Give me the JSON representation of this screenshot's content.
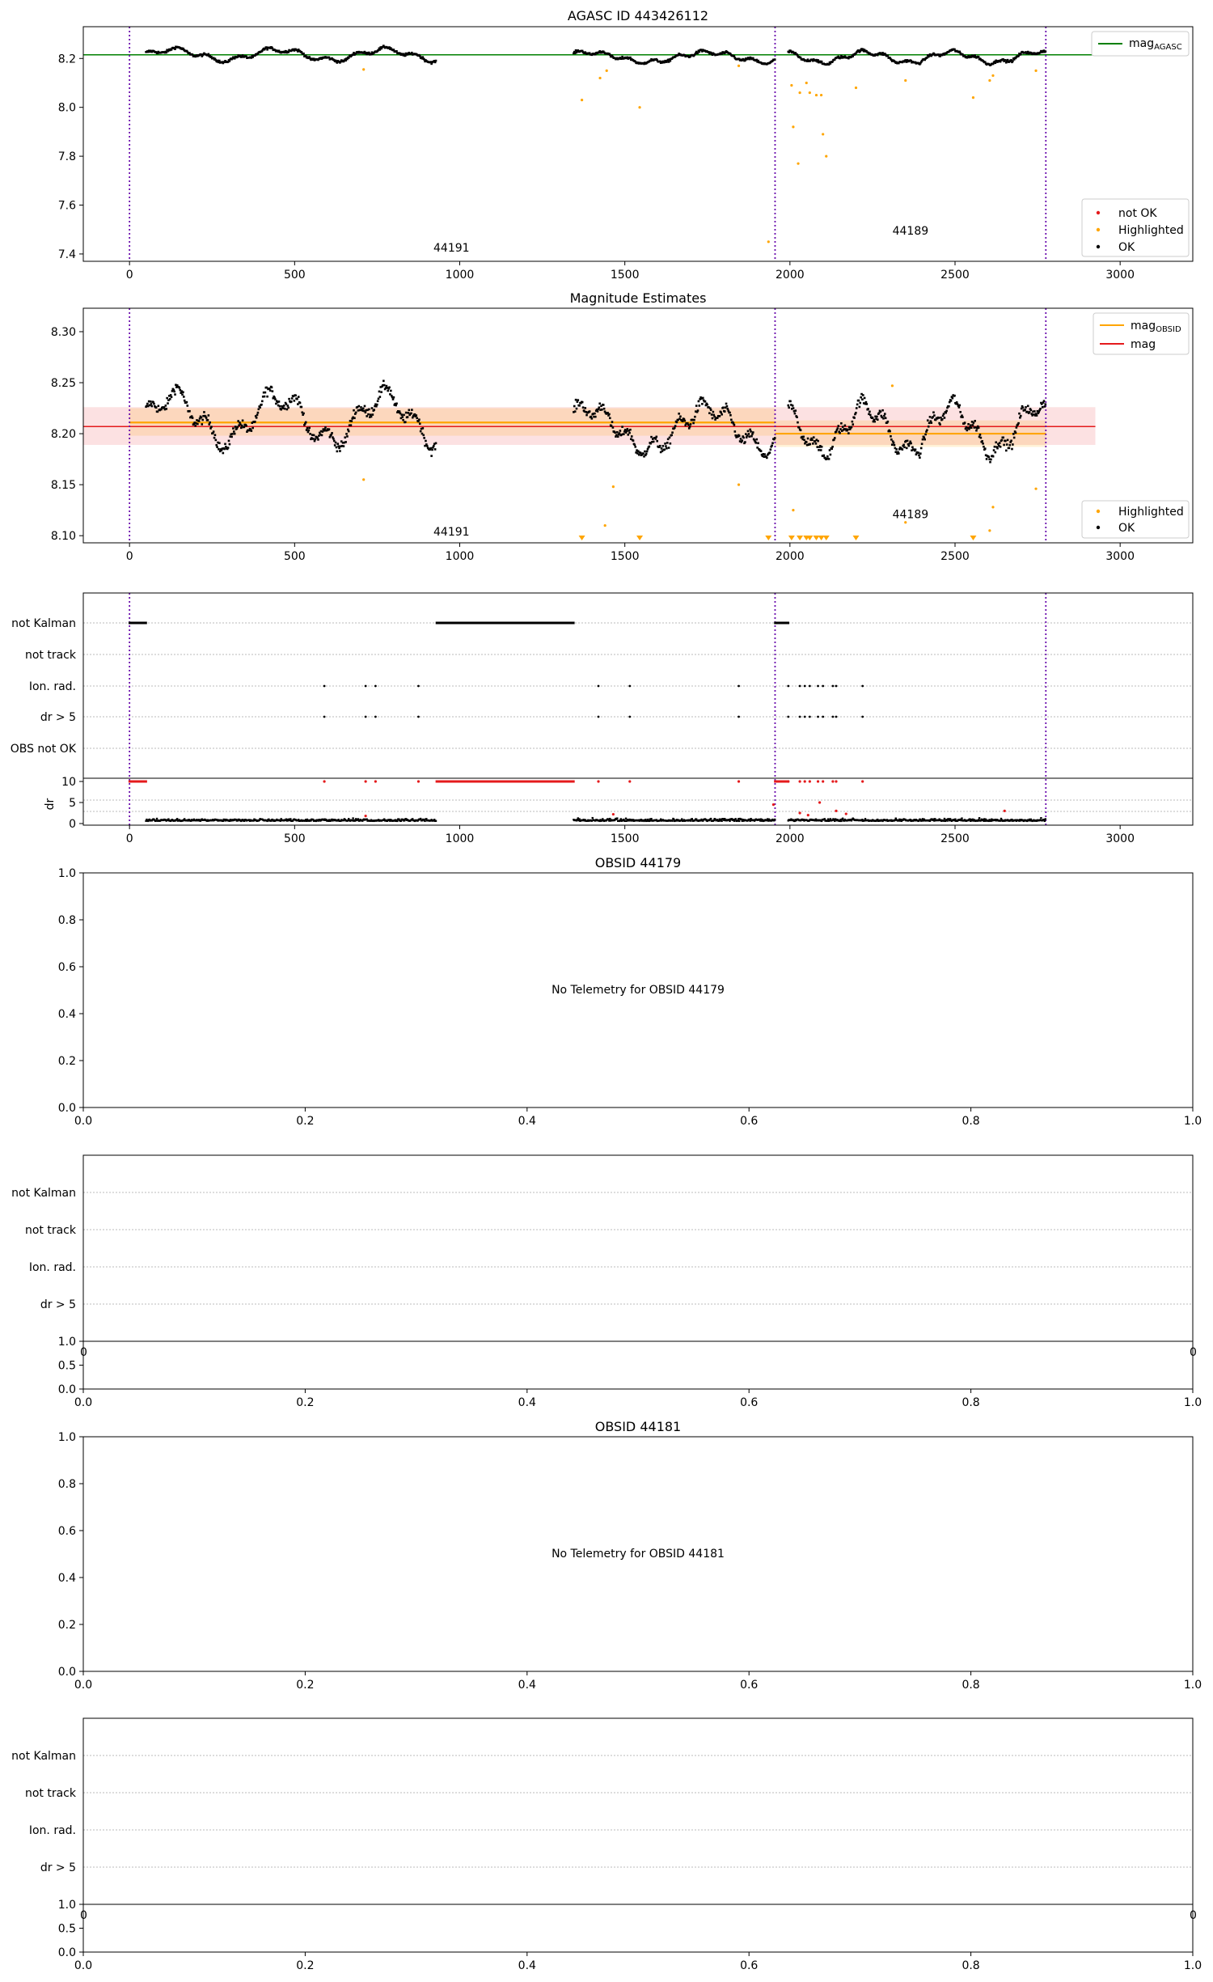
{
  "chart_data": [
    {
      "type": "scatter",
      "title": "AGASC ID 443426112",
      "xlim": [
        -140,
        3220
      ],
      "ylim": [
        7.37,
        8.33
      ],
      "xticks": [
        0,
        500,
        1000,
        1500,
        2000,
        2500,
        3000
      ],
      "yticks": [
        7.4,
        7.6,
        7.8,
        8.0,
        8.2
      ],
      "yticklabels": [
        "7.4",
        "7.6",
        "7.8",
        "8.0",
        "8.2"
      ],
      "vlines": [
        0,
        1955,
        2775
      ],
      "obsid_labels": [
        {
          "text": "44191",
          "x": 975,
          "y": 7.41
        },
        {
          "text": "44189",
          "x": 2365,
          "y": 7.48
        }
      ],
      "mag_agasc": {
        "value": 8.215,
        "x": [
          -140,
          2925
        ],
        "color": "#008000"
      },
      "legend_top": [
        {
          "label": "mag",
          "sub": "AGASC",
          "color": "#008000"
        }
      ],
      "legend_bottom": [
        {
          "label": "not OK",
          "color": "#e41a1c"
        },
        {
          "label": "Highlighted",
          "color": "#ffa500"
        },
        {
          "label": "OK",
          "color": "#000000"
        }
      ],
      "highlighted": [
        [
          709,
          8.155
        ],
        [
          1370,
          8.03
        ],
        [
          1425,
          8.12
        ],
        [
          1445,
          8.15
        ],
        [
          1545,
          8.0
        ],
        [
          1845,
          8.17
        ],
        [
          1935,
          7.45
        ],
        [
          2005,
          8.09
        ],
        [
          2010,
          7.92
        ],
        [
          2025,
          7.77
        ],
        [
          2030,
          8.06
        ],
        [
          2050,
          8.1
        ],
        [
          2060,
          8.06
        ],
        [
          2080,
          8.05
        ],
        [
          2095,
          8.05
        ],
        [
          2100,
          7.89
        ],
        [
          2110,
          7.8
        ],
        [
          2200,
          8.08
        ],
        [
          2350,
          8.11
        ],
        [
          2555,
          8.04
        ],
        [
          2605,
          8.11
        ],
        [
          2615,
          8.13
        ],
        [
          2745,
          8.15
        ]
      ],
      "ok_segments": [
        {
          "x0": 50,
          "x1": 930,
          "base": 8.215,
          "amp": [
            [
              0.022,
              320,
              0
            ],
            [
              0.01,
              90,
              1.1
            ]
          ]
        },
        {
          "x0": 1345,
          "x1": 1955,
          "base": 8.205,
          "amp": [
            [
              0.02,
              360,
              0.8
            ],
            [
              0.008,
              75,
              0.3
            ]
          ]
        },
        {
          "x0": 1995,
          "x1": 2775,
          "base": 8.205,
          "amp": [
            [
              0.022,
              260,
              2.2
            ],
            [
              0.008,
              70,
              0.6
            ]
          ]
        }
      ]
    },
    {
      "type": "scatter",
      "title": "Magnitude Estimates",
      "xlim": [
        -140,
        3220
      ],
      "ylim": [
        8.093,
        8.323
      ],
      "xticks": [
        0,
        500,
        1000,
        1500,
        2000,
        2500,
        3000
      ],
      "yticks": [
        8.1,
        8.15,
        8.2,
        8.25,
        8.3
      ],
      "yticklabels": [
        "8.10",
        "8.15",
        "8.20",
        "8.25",
        "8.30"
      ],
      "vlines": [
        0,
        1955,
        2775
      ],
      "obsid_labels": [
        {
          "text": "44191",
          "x": 975,
          "y": 8.1
        },
        {
          "text": "44189",
          "x": 2365,
          "y": 8.117
        }
      ],
      "mag": {
        "value": 8.207,
        "x": [
          -140,
          2925
        ],
        "band": [
          8.189,
          8.226
        ],
        "color": "#e41a1c"
      },
      "mag_obsid": [
        {
          "x": [
            0,
            1955
          ],
          "value": 8.211,
          "band": [
            8.198,
            8.225
          ]
        },
        {
          "x": [
            1955,
            2775
          ],
          "value": 8.2,
          "band": [
            8.187,
            8.213
          ]
        }
      ],
      "mag_obsid_color": "#ffa500",
      "legend_top": [
        {
          "label": "mag",
          "sub": "OBSID",
          "color": "#ffa500"
        },
        {
          "label": "mag",
          "sub": "",
          "color": "#e41a1c"
        }
      ],
      "legend_bottom": [
        {
          "label": "Highlighted",
          "color": "#ffa500"
        },
        {
          "label": "OK",
          "color": "#000000"
        }
      ],
      "highlighted": [
        [
          709,
          8.155
        ],
        [
          1440,
          8.11
        ],
        [
          1465,
          8.148
        ],
        [
          1845,
          8.15
        ],
        [
          2010,
          8.125
        ],
        [
          2350,
          8.113
        ],
        [
          2605,
          8.105
        ],
        [
          2615,
          8.128
        ],
        [
          2745,
          8.146
        ],
        [
          2310,
          8.247
        ]
      ],
      "clipped_markers": [
        1370,
        1545,
        1935,
        2005,
        2030,
        2050,
        2060,
        2080,
        2095,
        2110,
        2200,
        2555
      ]
    },
    {
      "type": "flags",
      "xlim": [
        -140,
        3220
      ],
      "xticks": [
        0,
        500,
        1000,
        1500,
        2000,
        2500,
        3000
      ],
      "vlines": [
        0,
        1955,
        2775
      ],
      "flag_rows": [
        "not Kalman",
        "not track",
        "Ion. rad.",
        "dr > 5",
        "OBS not OK"
      ],
      "ylabel": "dr",
      "dr_yticks": [
        0,
        5,
        10
      ],
      "not_kalman_ranges": [
        [
          0,
          50
        ],
        [
          930,
          1345
        ],
        [
          1955,
          1995
        ]
      ],
      "ion_rad_x": [
        590,
        715,
        745,
        875,
        1420,
        1515,
        1845,
        1995,
        2030,
        2045,
        2060,
        2085,
        2100,
        2130,
        2140,
        2220
      ],
      "dr_gt5_x": [
        590,
        715,
        745,
        875,
        1420,
        1515,
        1845,
        1995,
        2030,
        2045,
        2060,
        2085,
        2100,
        2130,
        2140,
        2220
      ]
    },
    {
      "type": "empty",
      "title": "OBSID 44179",
      "message": "No Telemetry for OBSID 44179",
      "xticks": [
        0.0,
        0.2,
        0.4,
        0.6,
        0.8,
        1.0
      ],
      "xticklabels": [
        "0.0",
        "0.2",
        "0.4",
        "0.6",
        "0.8",
        "1.0"
      ],
      "yticks": [
        0.0,
        0.2,
        0.4,
        0.6,
        0.8,
        1.0
      ],
      "yticklabels": [
        "0.0",
        "0.2",
        "0.4",
        "0.6",
        "0.8",
        "1.0"
      ]
    },
    {
      "type": "flags-empty",
      "flag_rows": [
        "not Kalman",
        "not track",
        "Ion. rad.",
        "dr > 5"
      ],
      "upper_ytick": "1.0",
      "upper_xtick_left": "0",
      "upper_xtick_right": "0",
      "lower_yticklabels": [
        "0.0",
        "0.5"
      ],
      "xticklabels": [
        "0.0",
        "0.2",
        "0.4",
        "0.6",
        "0.8",
        "1.0"
      ]
    },
    {
      "type": "empty",
      "title": "OBSID 44181",
      "message": "No Telemetry for OBSID 44181",
      "xticks": [
        0.0,
        0.2,
        0.4,
        0.6,
        0.8,
        1.0
      ],
      "xticklabels": [
        "0.0",
        "0.2",
        "0.4",
        "0.6",
        "0.8",
        "1.0"
      ],
      "yticks": [
        0.0,
        0.2,
        0.4,
        0.6,
        0.8,
        1.0
      ],
      "yticklabels": [
        "0.0",
        "0.2",
        "0.4",
        "0.6",
        "0.8",
        "1.0"
      ]
    },
    {
      "type": "flags-empty",
      "flag_rows": [
        "not Kalman",
        "not track",
        "Ion. rad.",
        "dr > 5"
      ],
      "upper_ytick": "1.0",
      "upper_xtick_left": "0",
      "upper_xtick_right": "0",
      "lower_yticklabels": [
        "0.0",
        "0.5"
      ],
      "xticklabels": [
        "0.0",
        "0.2",
        "0.4",
        "0.6",
        "0.8",
        "1.0"
      ]
    }
  ]
}
